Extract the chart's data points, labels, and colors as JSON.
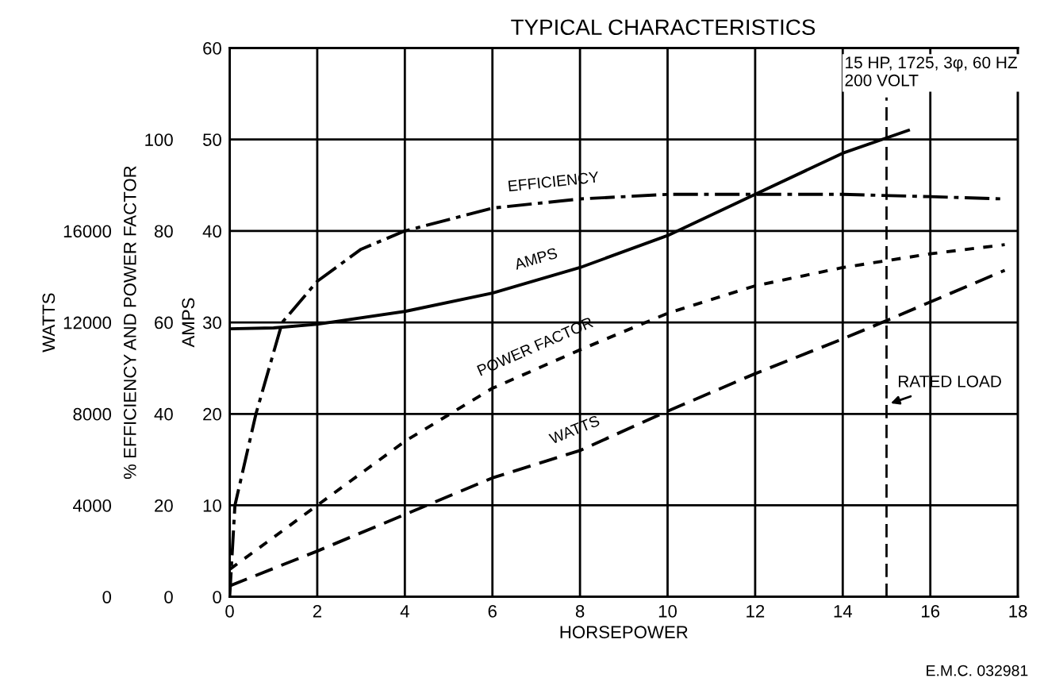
{
  "chart_data": {
    "type": "line",
    "title": "TYPICAL CHARACTERISTICS",
    "xlabel": "HORSEPOWER",
    "ylabel": "AMPS",
    "y2label": "% EFFICIENCY AND POWER FACTOR",
    "y3label": "WATTS",
    "xlim": [
      0,
      18
    ],
    "xticks": [
      0,
      2,
      4,
      6,
      8,
      10,
      12,
      14,
      16,
      18
    ],
    "ylim": [
      0,
      60
    ],
    "yticks": [
      0,
      10,
      20,
      30,
      40,
      50,
      60
    ],
    "y2lim": [
      0,
      120
    ],
    "y2ticks": [
      0,
      20,
      40,
      60,
      80,
      100
    ],
    "y3lim": [
      0,
      24000
    ],
    "y3ticks": [
      0,
      4000,
      8000,
      12000,
      16000
    ],
    "grid": true,
    "legend": false,
    "marker": "none",
    "series": [
      {
        "name": "EFFICIENCY",
        "color": "#000000",
        "line_style": "dashdot",
        "axis": "y2",
        "x": [
          0,
          0.12,
          0.6,
          1.2,
          2,
          3,
          4,
          6,
          8,
          10,
          12,
          14,
          16,
          17.7
        ],
        "values": [
          0,
          20,
          40,
          60,
          69,
          76,
          80,
          85,
          87,
          88,
          88,
          88,
          87.5,
          87
        ]
      },
      {
        "name": "AMPS",
        "color": "#000000",
        "line_style": "solid",
        "axis": "y",
        "x": [
          0,
          1,
          2,
          4,
          6,
          8,
          10,
          12,
          14,
          15.5
        ],
        "values": [
          29.3,
          29.4,
          29.8,
          31.2,
          33.2,
          36,
          39.5,
          44,
          48.5,
          51
        ]
      },
      {
        "name": "POWER FACTOR",
        "color": "#000000",
        "line_style": "dotted",
        "axis": "y2",
        "x": [
          0,
          2,
          4,
          6,
          8,
          10,
          12,
          14,
          16,
          17.7
        ],
        "values": [
          6,
          20,
          34,
          45.6,
          54,
          62,
          68,
          72,
          75,
          77
        ]
      },
      {
        "name": "WATTS",
        "color": "#000000",
        "line_style": "dashed",
        "axis": "y3",
        "x": [
          0,
          2,
          4,
          6,
          8,
          10,
          12,
          14,
          15,
          17.7
        ],
        "values": [
          480,
          2000,
          3600,
          5200,
          6400,
          8120,
          9760,
          11280,
          12080,
          14280
        ]
      }
    ],
    "ref_lines": [
      {
        "axis": "x",
        "value": 15,
        "label": "RATED LOAD",
        "line_style": "dashed",
        "color": "#000000"
      }
    ],
    "annotations": [
      "15 HP, 1725, 3φ, 60 HZ\n200 VOLT",
      "E.M.C. 032981"
    ]
  }
}
